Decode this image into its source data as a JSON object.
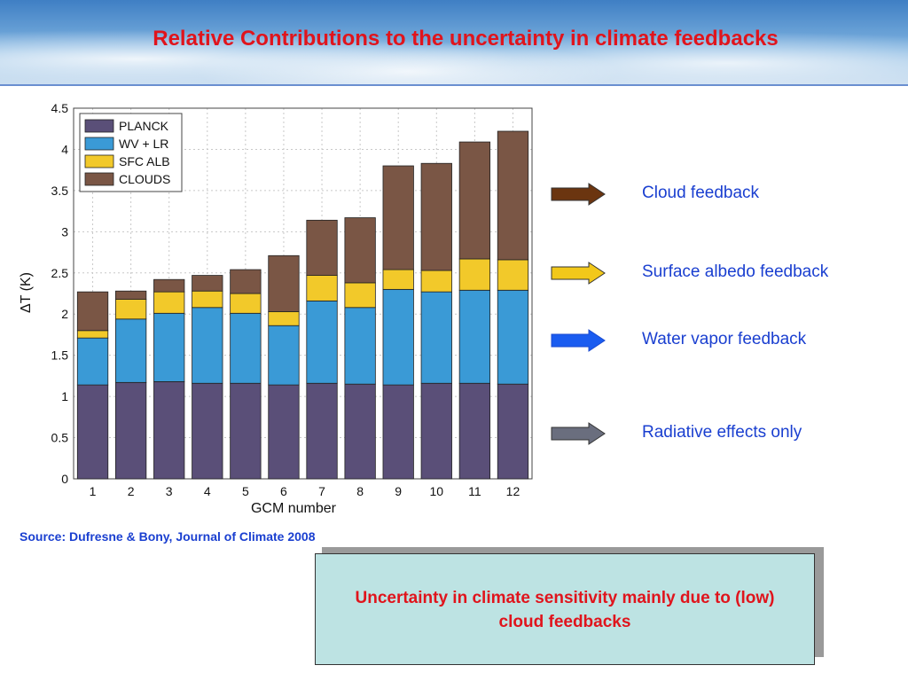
{
  "slide": {
    "title": "Relative Contributions to the uncertainty in climate feedbacks",
    "source": "Source: Dufresne & Bony, Journal of Climate 2008",
    "note": "Uncertainty in climate sensitivity mainly due to (low) cloud feedbacks"
  },
  "arrows": [
    {
      "label": "Cloud feedback",
      "color": "#6b3510"
    },
    {
      "label": "Surface albedo feedback",
      "color": "#f2c81a"
    },
    {
      "label": "Water vapor feedback",
      "color": "#1a5cf0"
    },
    {
      "label": "Radiative effects only",
      "color": "#6a6e7e"
    }
  ],
  "colors": {
    "PLANCK": "#5a4f78",
    "WV + LR": "#3a9ad6",
    "SFC ALB": "#f2c92a",
    "CLOUDS": "#7a5645"
  },
  "chart_data": {
    "type": "bar",
    "stacked": true,
    "xlabel": "GCM number",
    "ylabel": "ΔT (K)",
    "ylim": [
      0,
      4.5
    ],
    "yticks": [
      "0",
      "0.5",
      "1",
      "1.5",
      "2",
      "2.5",
      "3",
      "3.5",
      "4",
      "4.5"
    ],
    "grid": true,
    "legend": "top-left",
    "categories": [
      "1",
      "2",
      "3",
      "4",
      "5",
      "6",
      "7",
      "8",
      "9",
      "10",
      "11",
      "12"
    ],
    "series": [
      {
        "name": "PLANCK",
        "values": [
          1.14,
          1.17,
          1.18,
          1.16,
          1.16,
          1.14,
          1.16,
          1.15,
          1.14,
          1.16,
          1.16,
          1.15
        ]
      },
      {
        "name": "WV + LR",
        "values": [
          0.57,
          0.77,
          0.83,
          0.92,
          0.85,
          0.72,
          1.0,
          0.93,
          1.16,
          1.11,
          1.13,
          1.14
        ]
      },
      {
        "name": "SFC ALB",
        "values": [
          0.09,
          0.24,
          0.26,
          0.2,
          0.24,
          0.17,
          0.31,
          0.3,
          0.24,
          0.26,
          0.38,
          0.37
        ]
      },
      {
        "name": "CLOUDS",
        "values": [
          0.47,
          0.1,
          0.15,
          0.19,
          0.29,
          0.68,
          0.67,
          0.79,
          1.26,
          1.3,
          1.42,
          1.56
        ]
      }
    ]
  }
}
